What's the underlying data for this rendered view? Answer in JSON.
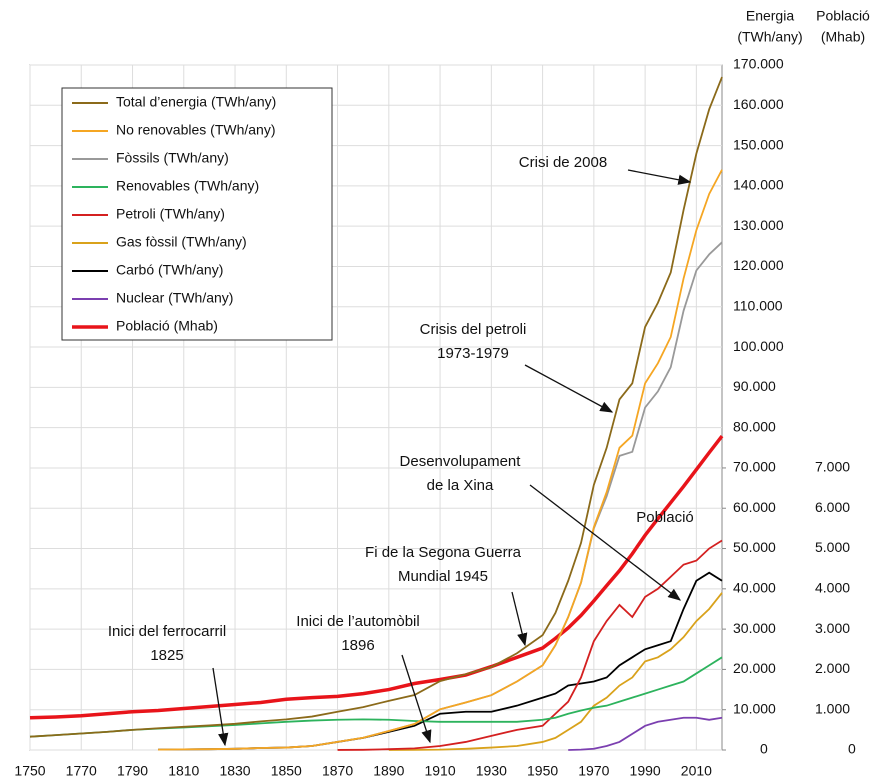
{
  "chart_data": {
    "type": "line",
    "y_label": [
      "Energia",
      "(TWh/any)"
    ],
    "y2_label": [
      "Població",
      "(Mhab)"
    ],
    "x": [
      1750,
      1760,
      1770,
      1780,
      1790,
      1800,
      1810,
      1820,
      1830,
      1840,
      1850,
      1860,
      1870,
      1880,
      1890,
      1900,
      1910,
      1920,
      1930,
      1940,
      1950,
      1955,
      1960,
      1965,
      1970,
      1975,
      1980,
      1985,
      1990,
      1995,
      2000,
      2005,
      2010,
      2015,
      2020
    ],
    "xlim": [
      1750,
      2020
    ],
    "xticks": [
      1750,
      1770,
      1790,
      1810,
      1830,
      1850,
      1870,
      1890,
      1910,
      1930,
      1950,
      1970,
      1990,
      2010
    ],
    "ylim": [
      0,
      170000
    ],
    "yticks": [
      0,
      {
        "value": 10000,
        "label": "10.000"
      },
      {
        "value": 20000,
        "label": "20.000"
      },
      {
        "value": 30000,
        "label": "30.000"
      },
      {
        "value": 40000,
        "label": "40.000"
      },
      {
        "value": 50000,
        "label": "50.000"
      },
      {
        "value": 60000,
        "label": "60.000"
      },
      {
        "value": 70000,
        "label": "70.000"
      },
      {
        "value": 80000,
        "label": "80.000"
      },
      {
        "value": 90000,
        "label": "90.000"
      },
      {
        "value": 100000,
        "label": "100.000"
      },
      {
        "value": 110000,
        "label": "110.000"
      },
      {
        "value": 120000,
        "label": "120.000"
      },
      {
        "value": 130000,
        "label": "130.000"
      },
      {
        "value": 140000,
        "label": "140.000"
      },
      {
        "value": 150000,
        "label": "150.000"
      },
      {
        "value": 160000,
        "label": "160.000"
      },
      {
        "value": 170000,
        "label": "170.000"
      }
    ],
    "y2lim": [
      0,
      17000
    ],
    "y2ticks": [
      0,
      {
        "value": 1000,
        "label": "1.000"
      },
      {
        "value": 2000,
        "label": "2.000"
      },
      {
        "value": 3000,
        "label": "3.000"
      },
      {
        "value": 4000,
        "label": "4.000"
      },
      {
        "value": 5000,
        "label": "5.000"
      },
      {
        "value": 6000,
        "label": "6.000"
      },
      {
        "value": 7000,
        "label": "7.000"
      }
    ],
    "grid": true,
    "legend": "upper left",
    "series": [
      {
        "name": "Total d’energia (TWh/any)",
        "color": "#8b6a1a",
        "values": [
          3300,
          3700,
          4100,
          4500,
          5000,
          5400,
          5750,
          6100,
          6500,
          7100,
          7600,
          8300,
          9500,
          10650,
          12200,
          13650,
          17100,
          18800,
          20600,
          24000,
          28500,
          34000,
          42000,
          51400,
          65800,
          75000,
          87000,
          91000,
          105000,
          111000,
          118500,
          134000,
          148000,
          159000,
          167000
        ]
      },
      {
        "name": "No renovables (TWh/any)",
        "color": "#f5a623",
        "values": [
          null,
          null,
          null,
          null,
          null,
          100,
          150,
          200,
          300,
          500,
          600,
          1000,
          2010,
          3050,
          4710,
          6450,
          10100,
          11800,
          13600,
          17000,
          21000,
          26000,
          33000,
          41600,
          55300,
          64000,
          75000,
          78000,
          91000,
          96000,
          102500,
          117000,
          129000,
          138000,
          144000
        ]
      },
      {
        "name": "Fòssils (TWh/any)",
        "color": "#999999",
        "values": [
          null,
          null,
          null,
          null,
          null,
          100,
          150,
          200,
          300,
          500,
          600,
          1000,
          2010,
          3050,
          4710,
          6450,
          10100,
          11800,
          13600,
          17000,
          21000,
          26000,
          33000,
          41500,
          55000,
          63000,
          73000,
          74000,
          85000,
          89000,
          95000,
          109000,
          119000,
          123000,
          126000
        ]
      },
      {
        "name": "Renovables (TWh/any)",
        "color": "#2db35d",
        "values": [
          3300,
          3700,
          4100,
          4500,
          5000,
          5300,
          5600,
          5900,
          6200,
          6600,
          7000,
          7300,
          7500,
          7600,
          7500,
          7200,
          7000,
          7000,
          7000,
          7000,
          7500,
          8000,
          9000,
          9800,
          10500,
          11000,
          12000,
          13000,
          14000,
          15000,
          16000,
          17000,
          19000,
          21000,
          23000
        ]
      },
      {
        "name": "Petroli (TWh/any)",
        "color": "#d42020",
        "values": [
          null,
          null,
          null,
          null,
          null,
          null,
          null,
          null,
          null,
          null,
          null,
          null,
          10,
          50,
          200,
          400,
          1000,
          2000,
          3500,
          5000,
          6000,
          9000,
          12000,
          18000,
          27000,
          32000,
          36000,
          33000,
          38000,
          40000,
          43000,
          46000,
          47000,
          50000,
          52000
        ]
      },
      {
        "name": "Gas fòssil (TWh/any)",
        "color": "#d9a21b",
        "values": [
          null,
          null,
          null,
          null,
          null,
          null,
          null,
          null,
          null,
          null,
          null,
          null,
          null,
          null,
          10,
          50,
          100,
          300,
          600,
          1000,
          2000,
          3000,
          5000,
          7000,
          11000,
          13000,
          16000,
          18000,
          22000,
          23000,
          25000,
          28000,
          32000,
          35000,
          39000
        ]
      },
      {
        "name": "Carbó (TWh/any)",
        "color": "#000000",
        "values": [
          null,
          null,
          null,
          null,
          null,
          100,
          150,
          200,
          300,
          500,
          600,
          1000,
          2000,
          3000,
          4500,
          6000,
          9000,
          9500,
          9500,
          11000,
          13000,
          14000,
          16000,
          16500,
          17000,
          18000,
          21000,
          23000,
          25000,
          26000,
          27000,
          35000,
          42000,
          44000,
          42000
        ]
      },
      {
        "name": "Nuclear (TWh/any)",
        "color": "#7b3fb0",
        "values": [
          null,
          null,
          null,
          null,
          null,
          null,
          null,
          null,
          null,
          null,
          null,
          null,
          null,
          null,
          null,
          null,
          null,
          null,
          null,
          null,
          null,
          null,
          0,
          100,
          300,
          1000,
          2000,
          4000,
          6000,
          7000,
          7500,
          8000,
          8000,
          7500,
          8000
        ]
      },
      {
        "name": "Població (Mhab)",
        "color": "#e8141a",
        "axis": "y2",
        "values": [
          800,
          820,
          850,
          900,
          950,
          980,
          1030,
          1080,
          1130,
          1180,
          1260,
          1300,
          1330,
          1400,
          1500,
          1650,
          1750,
          1860,
          2070,
          2300,
          2530,
          2770,
          3030,
          3340,
          3700,
          4080,
          4450,
          4870,
          5330,
          5740,
          6140,
          6540,
          6960,
          7380,
          7790
        ]
      }
    ],
    "annotations": [
      [
        "Crisi de 2008"
      ],
      [
        "Crisis del petroli",
        "1973-1979"
      ],
      [
        "Desenvolupament",
        "de la Xina"
      ],
      [
        "Població"
      ],
      [
        "Fi de la Segona Guerra",
        "Mundial 1945"
      ],
      [
        "Inici de l’automòbil",
        "1896"
      ],
      [
        "Inici del ferrocarril",
        "1825"
      ]
    ]
  }
}
